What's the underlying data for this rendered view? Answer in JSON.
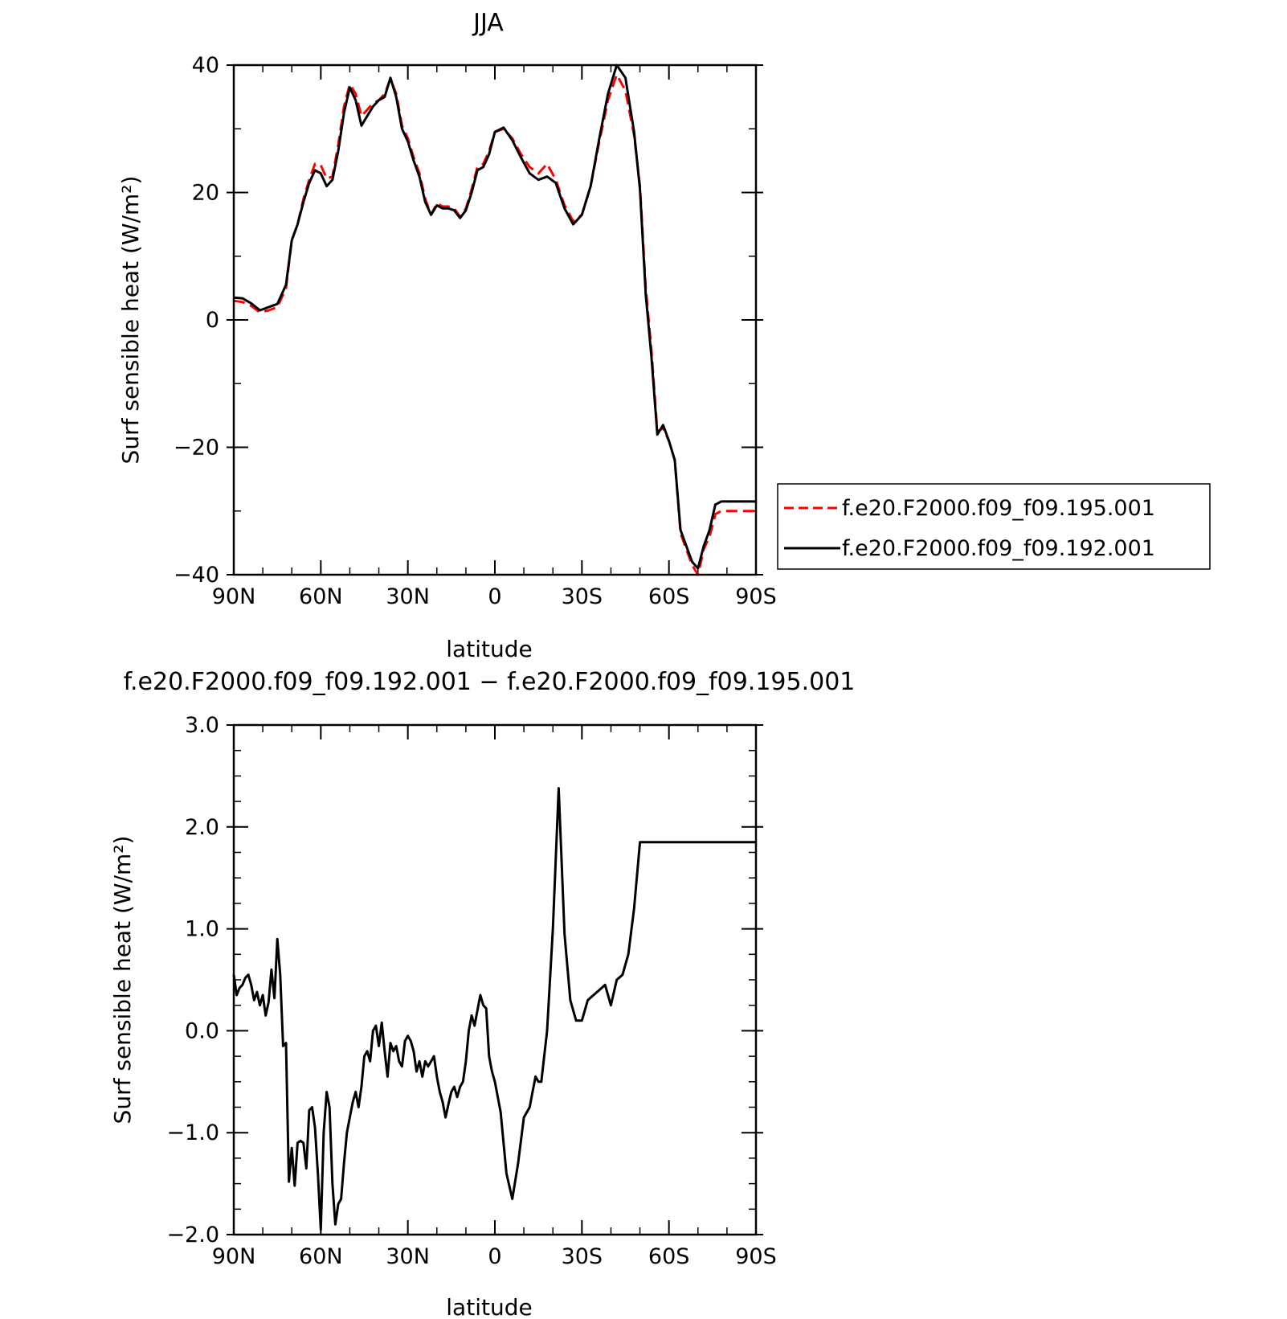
{
  "chart_data": [
    {
      "type": "line",
      "title": "JJA",
      "xlabel": "latitude",
      "ylabel": "Surf sensible heat (W/m²)",
      "xlim": [
        90,
        -90
      ],
      "ylim": [
        -40,
        40
      ],
      "xticks": [
        90,
        60,
        30,
        0,
        -30,
        -60,
        -90
      ],
      "xticklabels": [
        "90N",
        "60N",
        "30N",
        "0",
        "30S",
        "60S",
        "90S"
      ],
      "yticks": [
        -40,
        -20,
        0,
        20,
        40
      ],
      "yticklabels": [
        "−40",
        "−20",
        "0",
        "20",
        "40"
      ],
      "legend_position": "right",
      "series": [
        {
          "name": "f.e20.F2000.f09_f09.195.001",
          "color": "#ff0000",
          "dash": "dashed",
          "x": [
            90,
            87,
            84,
            81,
            78,
            75,
            72,
            70,
            68,
            66,
            64,
            62,
            60,
            58,
            56,
            54,
            52,
            50,
            48,
            46,
            44,
            42,
            40,
            38,
            36,
            34,
            32,
            30,
            28,
            26,
            24,
            22,
            20,
            18,
            16,
            14,
            12,
            10,
            8,
            6,
            4,
            2,
            0,
            -3,
            -6,
            -9,
            -12,
            -15,
            -18,
            -21,
            -24,
            -27,
            -30,
            -33,
            -36,
            -39,
            -42,
            -45,
            -48,
            -50,
            -52,
            -54,
            -56,
            -58,
            -60,
            -62,
            -64,
            -66,
            -68,
            -70,
            -72,
            -74,
            -76,
            -78,
            -80,
            -82,
            -84,
            -86,
            -88,
            -90
          ],
          "y": [
            3.0,
            2.8,
            2.2,
            1.2,
            1.5,
            2.0,
            5.0,
            12.5,
            15.0,
            19.0,
            22.0,
            24.5,
            24.3,
            22.2,
            22.5,
            27.5,
            33.5,
            37.0,
            35.5,
            32.0,
            33.0,
            34.0,
            34.5,
            35.5,
            37.8,
            35.5,
            30.5,
            28.5,
            25.5,
            23.0,
            19.0,
            16.5,
            18.3,
            17.8,
            17.8,
            17.5,
            16.2,
            17.5,
            20.5,
            24.0,
            24.5,
            26.5,
            29.5,
            30.0,
            28.5,
            26.0,
            24.0,
            23.0,
            24.5,
            22.0,
            18.0,
            15.5,
            16.5,
            21.0,
            28.0,
            34.5,
            38.5,
            36.0,
            29.0,
            21.0,
            5.0,
            -5.0,
            -17.5,
            -17.0,
            -19.0,
            -22.0,
            -33.5,
            -36.0,
            -38.5,
            -40.0,
            -36.0,
            -34.0,
            -30.5,
            -30.0,
            -30.0,
            -30.0,
            -30.0,
            -30.0,
            -30.0,
            -30.0
          ]
        },
        {
          "name": "f.e20.F2000.f09_f09.192.001",
          "color": "#000000",
          "dash": "solid",
          "x": [
            90,
            87,
            84,
            81,
            78,
            75,
            72,
            70,
            68,
            66,
            64,
            62,
            60,
            58,
            56,
            54,
            52,
            50,
            48,
            46,
            44,
            42,
            40,
            38,
            36,
            34,
            32,
            30,
            28,
            26,
            24,
            22,
            20,
            18,
            16,
            14,
            12,
            10,
            8,
            6,
            4,
            2,
            0,
            -3,
            -6,
            -9,
            -12,
            -15,
            -18,
            -21,
            -24,
            -27,
            -30,
            -33,
            -36,
            -39,
            -42,
            -45,
            -48,
            -50,
            -52,
            -54,
            -56,
            -58,
            -60,
            -62,
            -64,
            -66,
            -68,
            -70,
            -72,
            -74,
            -76,
            -78,
            -80,
            -82,
            -84,
            -86,
            -88,
            -90
          ],
          "y": [
            3.5,
            3.4,
            2.6,
            1.5,
            2.0,
            2.5,
            5.5,
            12.5,
            15.0,
            18.5,
            21.5,
            23.5,
            23.0,
            21.0,
            22.0,
            26.5,
            32.5,
            36.5,
            34.5,
            30.5,
            32.0,
            33.5,
            34.5,
            35.0,
            38.0,
            35.0,
            30.0,
            28.0,
            25.0,
            22.5,
            18.5,
            16.5,
            18.0,
            17.5,
            17.5,
            17.2,
            16.0,
            17.2,
            20.0,
            23.5,
            24.0,
            26.0,
            29.5,
            30.2,
            28.2,
            25.5,
            23.0,
            22.0,
            22.5,
            21.5,
            17.5,
            15.0,
            16.5,
            21.0,
            28.5,
            35.5,
            40.0,
            38.0,
            29.5,
            20.5,
            4.0,
            -6.0,
            -18.0,
            -16.5,
            -19.0,
            -22.0,
            -33.0,
            -35.5,
            -38.0,
            -39.0,
            -35.5,
            -33.0,
            -29.0,
            -28.5,
            -28.5,
            -28.5,
            -28.5,
            -28.5,
            -28.5,
            -28.5
          ]
        }
      ]
    },
    {
      "type": "line",
      "title": "f.e20.F2000.f09_f09.192.001 − f.e20.F2000.f09_f09.195.001",
      "xlabel": "latitude",
      "ylabel": "Surf sensible heat (W/m²)",
      "xlim": [
        90,
        -90
      ],
      "ylim": [
        -2.0,
        3.0
      ],
      "xticks": [
        90,
        60,
        30,
        0,
        -30,
        -60,
        -90
      ],
      "xticklabels": [
        "90N",
        "60N",
        "30N",
        "0",
        "30S",
        "60S",
        "90S"
      ],
      "yticks": [
        -2.0,
        -1.0,
        0.0,
        1.0,
        2.0,
        3.0
      ],
      "yticklabels": [
        "−2.0",
        "−1.0",
        "0.0",
        "1.0",
        "2.0",
        "3.0"
      ],
      "series": [
        {
          "color": "#000000",
          "dash": "solid",
          "x": [
            90,
            89,
            88,
            87,
            86,
            85,
            84,
            83,
            82,
            81,
            80,
            79,
            78,
            77,
            76,
            75,
            74,
            73,
            72,
            71,
            70,
            69,
            68,
            67,
            66,
            65,
            64,
            63,
            62,
            61,
            60,
            59,
            58,
            57,
            56,
            55,
            54,
            53,
            52,
            51,
            50,
            49,
            48,
            47,
            46,
            45,
            44,
            43,
            42,
            41,
            40,
            39,
            38,
            37,
            36,
            35,
            34,
            33,
            32,
            31,
            30,
            29,
            28,
            27,
            26,
            25,
            24,
            23,
            22,
            21,
            20,
            19,
            18,
            17,
            16,
            15,
            14,
            13,
            12,
            11,
            10,
            9,
            8,
            7,
            6,
            5,
            4,
            3,
            2,
            1,
            0,
            -2,
            -4,
            -6,
            -8,
            -10,
            -12,
            -13,
            -14,
            -15,
            -16,
            -18,
            -20,
            -22,
            -24,
            -26,
            -28,
            -30,
            -32,
            -34,
            -36,
            -38,
            -40,
            -42,
            -44,
            -46,
            -48,
            -50,
            -52,
            -54,
            -56,
            -58,
            -60,
            -62,
            -64,
            -65,
            -66,
            -67,
            -68,
            -70,
            -72,
            -74,
            -76,
            -78,
            -80,
            -82,
            -84,
            -86,
            -88,
            -89,
            -90
          ],
          "y": [
            0.55,
            0.35,
            0.42,
            0.45,
            0.52,
            0.55,
            0.45,
            0.3,
            0.38,
            0.25,
            0.35,
            0.15,
            0.28,
            0.6,
            0.32,
            0.9,
            0.55,
            -0.15,
            -0.12,
            -1.48,
            -1.15,
            -1.52,
            -1.1,
            -1.08,
            -1.1,
            -1.35,
            -0.78,
            -0.75,
            -0.95,
            -1.4,
            -1.95,
            -1.0,
            -0.6,
            -0.75,
            -1.5,
            -1.9,
            -1.7,
            -1.65,
            -1.3,
            -1.0,
            -0.85,
            -0.7,
            -0.6,
            -0.75,
            -0.55,
            -0.25,
            -0.2,
            -0.3,
            0.0,
            0.05,
            -0.15,
            0.08,
            -0.2,
            -0.45,
            -0.12,
            -0.2,
            -0.15,
            -0.3,
            -0.35,
            -0.1,
            -0.05,
            -0.1,
            -0.2,
            -0.4,
            -0.3,
            -0.45,
            -0.3,
            -0.35,
            -0.3,
            -0.25,
            -0.45,
            -0.6,
            -0.7,
            -0.85,
            -0.72,
            -0.6,
            -0.55,
            -0.65,
            -0.55,
            -0.5,
            -0.3,
            0.0,
            0.15,
            0.05,
            0.2,
            0.35,
            0.25,
            0.22,
            -0.25,
            -0.4,
            -0.5,
            -0.8,
            -1.4,
            -1.65,
            -1.3,
            -0.85,
            -0.75,
            -0.6,
            -0.45,
            -0.5,
            -0.5,
            0.0,
            1.0,
            2.38,
            0.95,
            0.3,
            0.1,
            0.1,
            0.3,
            0.35,
            0.4,
            0.45,
            0.25,
            0.5,
            0.55,
            0.75,
            1.2,
            1.85,
            1.85,
            1.85,
            1.85,
            1.85,
            1.85,
            1.85,
            1.85,
            1.85,
            1.85,
            1.85,
            1.85,
            1.85,
            1.85,
            1.85,
            1.85,
            1.85,
            1.85,
            1.85,
            1.85,
            1.85,
            1.85,
            1.85,
            1.85
          ]
        }
      ]
    }
  ]
}
